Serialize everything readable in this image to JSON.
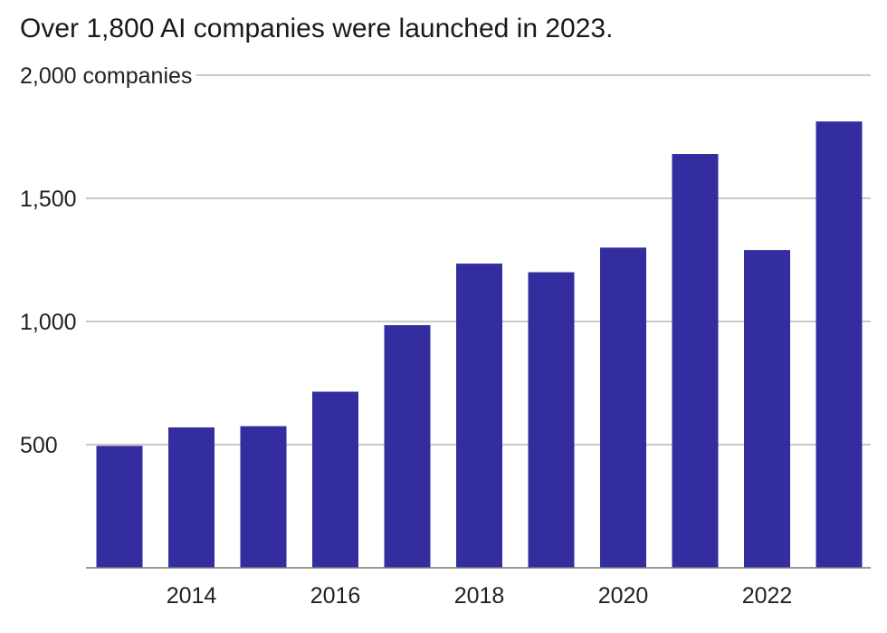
{
  "subtitle": "Over 1,800 AI companies were launched in 2023.",
  "colors": {
    "bar": "#332d9f",
    "grid": "#b8b8b8",
    "baseline": "#7a7a7a",
    "text": "#222222"
  },
  "chart_data": {
    "type": "bar",
    "title": "",
    "xlabel": "",
    "ylabel": "",
    "x": [
      2013,
      2014,
      2015,
      2016,
      2017,
      2018,
      2019,
      2020,
      2021,
      2022,
      2023
    ],
    "values": [
      495,
      570,
      575,
      715,
      985,
      1235,
      1200,
      1300,
      1680,
      1290,
      1812
    ],
    "ylim": [
      0,
      2000
    ],
    "y_ticks": [
      {
        "value": 500,
        "label": "500"
      },
      {
        "value": 1000,
        "label": "1,000"
      },
      {
        "value": 1500,
        "label": "1,500"
      },
      {
        "value": 2000,
        "label": "2,000 companies"
      }
    ],
    "x_ticks": [
      {
        "value": 2014,
        "label": "2014"
      },
      {
        "value": 2016,
        "label": "2016"
      },
      {
        "value": 2018,
        "label": "2018"
      },
      {
        "value": 2020,
        "label": "2020"
      },
      {
        "value": 2022,
        "label": "2022"
      }
    ],
    "grid": true,
    "legend": "none"
  }
}
